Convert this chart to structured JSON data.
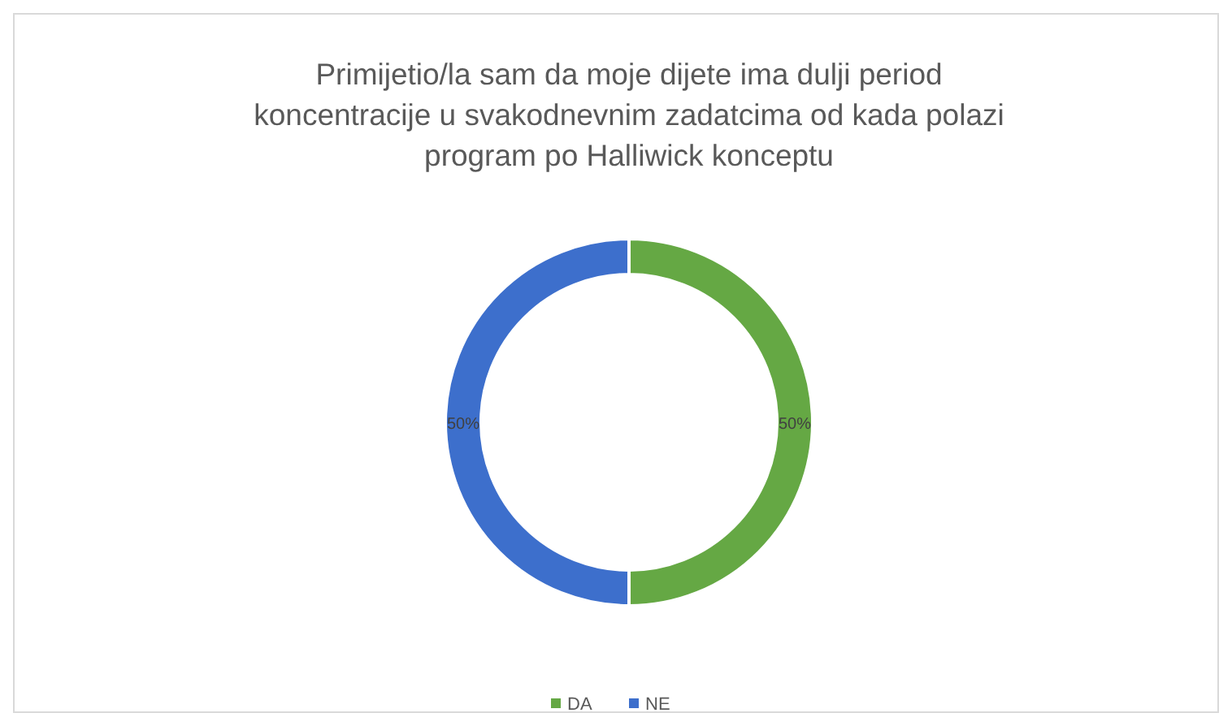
{
  "chart_data": {
    "type": "donut",
    "title": "Primijetio/la sam da moje dijete ima dulji period koncentracije u svakodnevnim zadatcima od kada polazi program po Halliwick konceptu",
    "categories": [
      "DA",
      "NE"
    ],
    "values": [
      50,
      50
    ],
    "colors": [
      "#65a844",
      "#3d6fcc"
    ],
    "value_labels": [
      "50%",
      "50%"
    ],
    "legend": "bottom"
  }
}
